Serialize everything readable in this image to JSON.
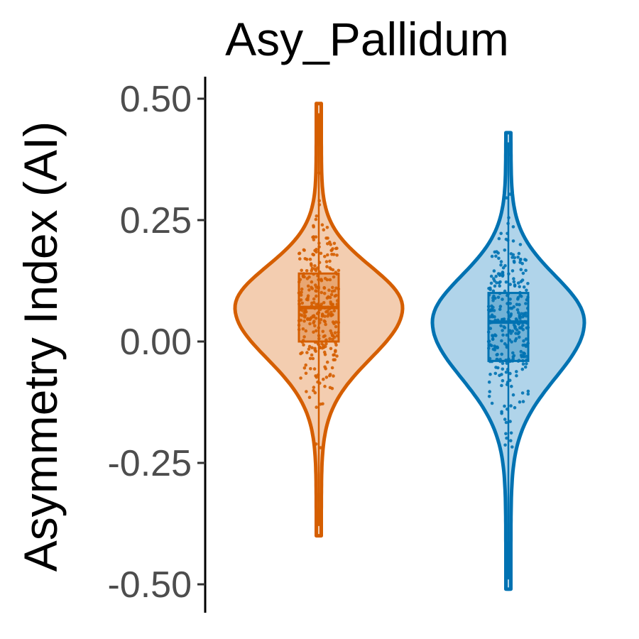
{
  "chart_data": {
    "type": "violin",
    "title": "Asy_Pallidum",
    "xlabel": "",
    "ylabel": "Asymmetry Index (AI)",
    "ylim": [
      -0.53,
      0.55
    ],
    "yticks": [
      0.5,
      0.25,
      0.0,
      -0.25,
      -0.5
    ],
    "ytick_labels": [
      "0.50",
      "0.25",
      "0.00",
      "-0.25",
      "-0.50"
    ],
    "grid": false,
    "legend": "none",
    "series": [
      {
        "color": "#D55E00",
        "fill": "#F3CDB0",
        "range": [
          -0.4,
          0.49
        ],
        "box": {
          "q1": 0.0,
          "median": 0.07,
          "q3": 0.14
        },
        "outliers": [
          0.41,
          -0.32
        ]
      },
      {
        "color": "#0072B2",
        "fill": "#B0D4EA",
        "range": [
          -0.51,
          0.43
        ],
        "box": {
          "q1": -0.04,
          "median": 0.04,
          "q3": 0.1
        },
        "outliers": [
          -0.42,
          -0.4
        ]
      }
    ]
  }
}
